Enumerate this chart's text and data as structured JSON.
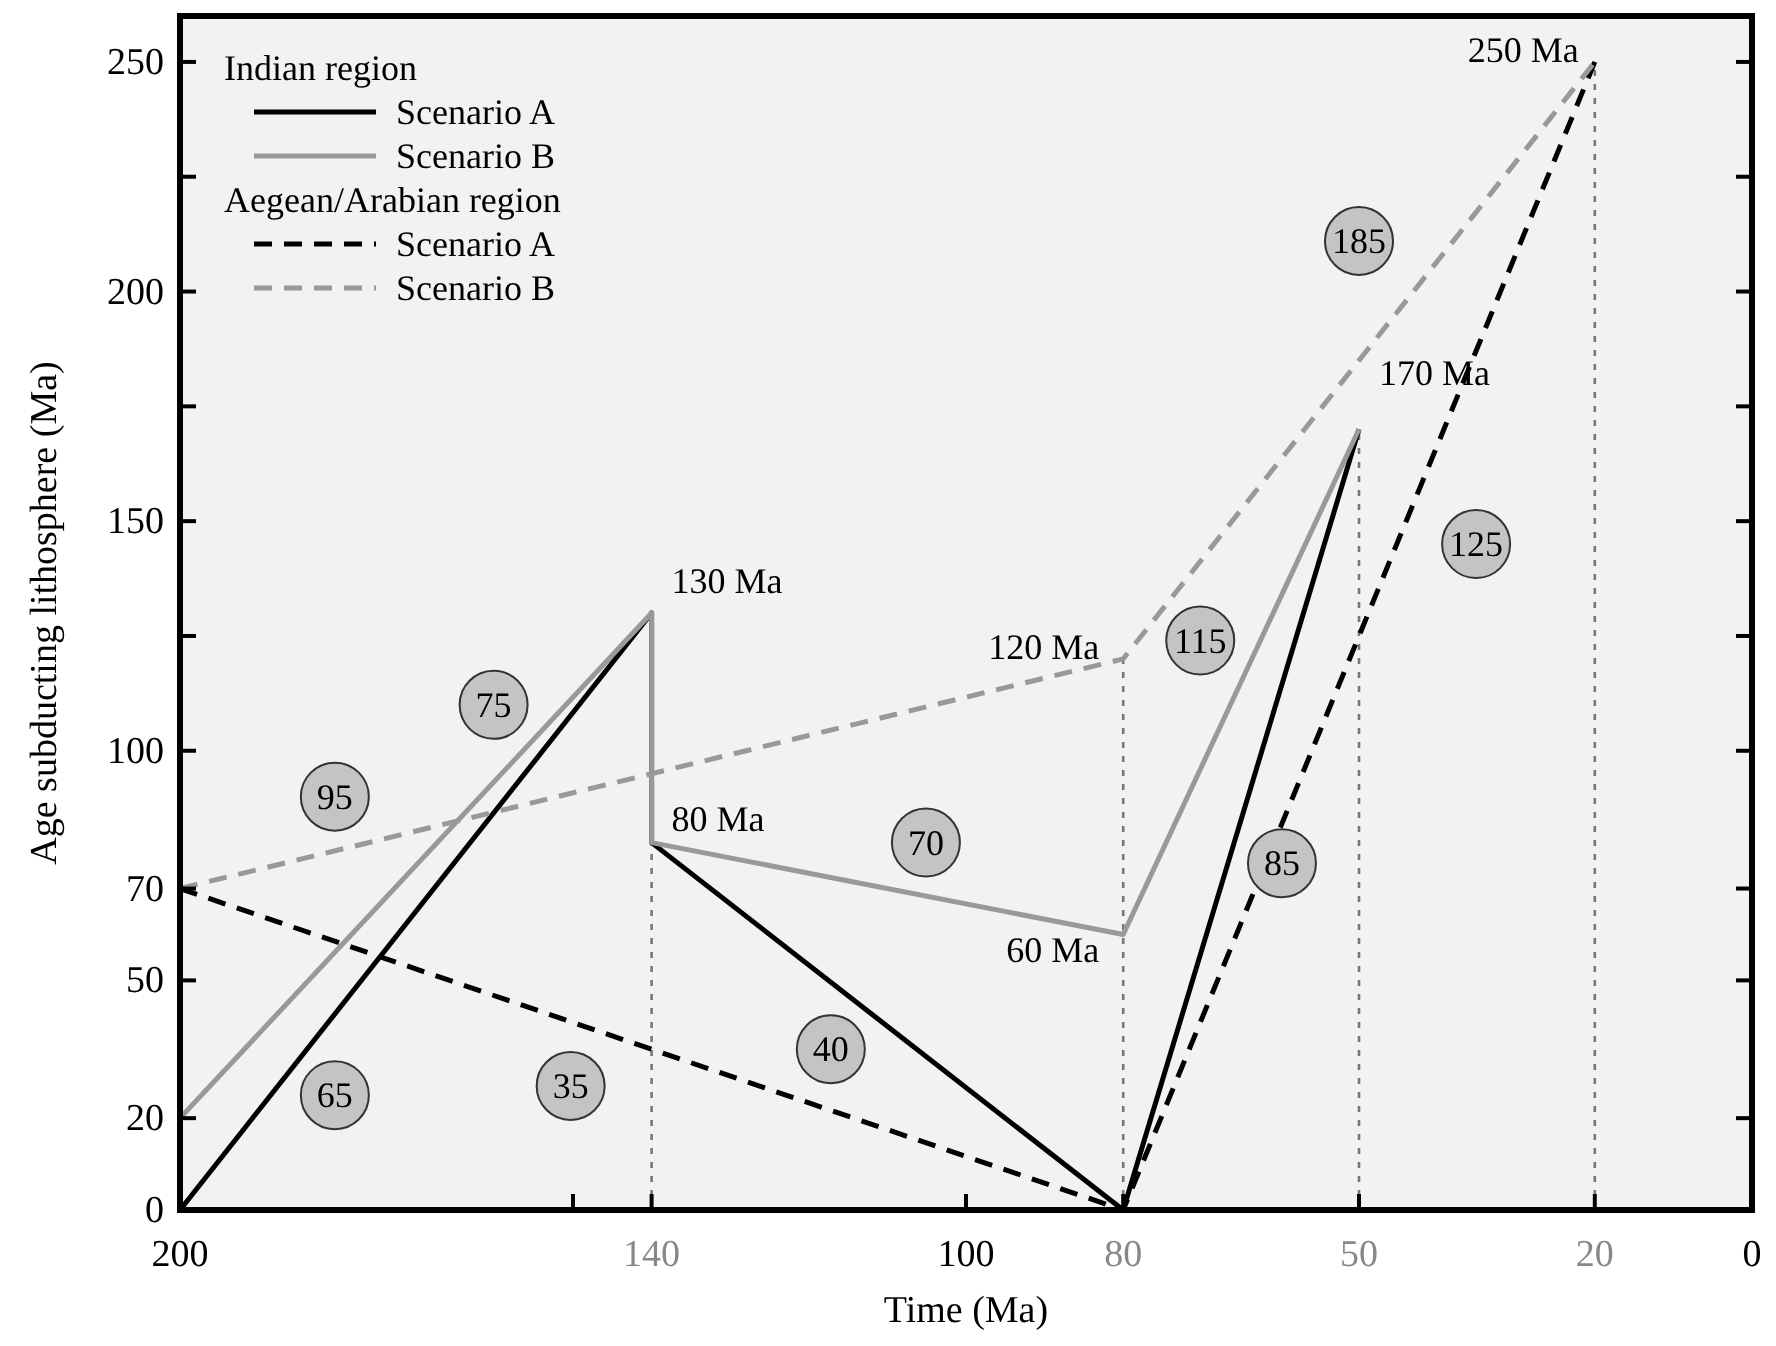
{
  "chart_data": {
    "type": "line",
    "xlabel": "Time (Ma)",
    "ylabel": "Age subducting lithosphere (Ma)",
    "xlim": [
      200,
      0
    ],
    "ylim": [
      0,
      260
    ],
    "xticks": [
      200,
      {
        "value": 150,
        "label": null
      },
      140,
      100,
      80,
      50,
      20,
      0
    ],
    "yticks": [
      0,
      20,
      50,
      70,
      100,
      {
        "value": 125,
        "label": null
      },
      150,
      {
        "value": 175,
        "label": null
      },
      200,
      {
        "value": 225,
        "label": null
      },
      250
    ],
    "legend": "top left",
    "grid": false,
    "series": [
      {
        "name": "Scenario A",
        "color": "#000000",
        "line_style": "solid",
        "x": [
          200,
          140,
          140,
          80,
          50
        ],
        "values": [
          0,
          130,
          80,
          0,
          170
        ]
      },
      {
        "name": "Scenario B",
        "color": "#999999",
        "line_style": "solid",
        "x": [
          200,
          140,
          140,
          80,
          50
        ],
        "values": [
          20,
          130,
          80,
          60,
          170
        ]
      },
      {
        "name": "Scenario A",
        "color": "#000000",
        "line_style": "dashed",
        "x": [
          200,
          80,
          20
        ],
        "values": [
          70,
          0,
          250
        ]
      },
      {
        "name": "Scenario B",
        "color": "#999999",
        "line_style": "dashed",
        "x": [
          200,
          80,
          20
        ],
        "values": [
          70,
          120,
          250
        ]
      }
    ],
    "ref_lines": [
      {
        "axis": "x",
        "value": 140,
        "label": null,
        "color": "#777777",
        "line_style": "dotted"
      },
      {
        "axis": "x",
        "value": 80,
        "label": null,
        "color": "#777777",
        "line_style": "dotted"
      },
      {
        "axis": "x",
        "value": 50,
        "label": null,
        "color": "#777777",
        "line_style": "dotted"
      },
      {
        "axis": "x",
        "value": 20,
        "label": null,
        "color": "#777777",
        "line_style": "dotted"
      }
    ],
    "annotations": [
      "Indian region",
      "Aegean/Arabian region",
      {
        "text": "130 Ma",
        "x": 140,
        "y": 130
      },
      {
        "text": "80 Ma",
        "x": 140,
        "y": 80
      },
      {
        "text": "60 Ma",
        "x": 80,
        "y": 60
      },
      {
        "text": "120 Ma",
        "x": 80,
        "y": 120
      },
      {
        "text": "170 Ma",
        "x": 50,
        "y": 170
      },
      {
        "text": "250 Ma",
        "x": 20,
        "y": 250
      },
      {
        "text": "65",
        "x": 180.3,
        "y": 25
      },
      {
        "text": "35",
        "x": 150.3,
        "y": 27
      },
      {
        "text": "40",
        "x": 117.2,
        "y": 35
      },
      {
        "text": "85",
        "x": 59.8,
        "y": 75.5
      },
      {
        "text": "125",
        "x": 35.1,
        "y": 145
      },
      {
        "text": "95",
        "x": 180.3,
        "y": 90
      },
      {
        "text": "75",
        "x": 160.1,
        "y": 110
      },
      {
        "text": "70",
        "x": 105.1,
        "y": 80
      },
      {
        "text": "115",
        "x": 70.2,
        "y": 124
      },
      {
        "text": "185",
        "x": 50,
        "y": 211
      }
    ]
  }
}
